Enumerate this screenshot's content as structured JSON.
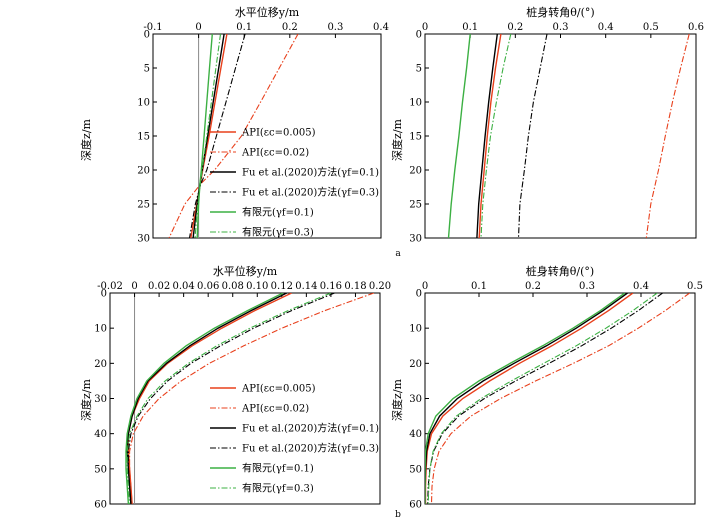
{
  "panel_labels": [
    "a",
    "b"
  ],
  "series_styles": [
    {
      "color": "#e8401c",
      "dash": "",
      "width": 1.4
    },
    {
      "color": "#e8401c",
      "dash": "6 2 1.5 2",
      "width": 1.1
    },
    {
      "color": "#000000",
      "dash": "",
      "width": 1.4
    },
    {
      "color": "#000000",
      "dash": "6 2 1.5 2",
      "width": 1.1
    },
    {
      "color": "#3cb043",
      "dash": "",
      "width": 1.4
    },
    {
      "color": "#3cb043",
      "dash": "6 2 1.5 2",
      "width": 1.1
    }
  ],
  "chart_data": [
    {
      "id": "a-left",
      "type": "line",
      "xlabel": "水平位移y/m",
      "ylabel": "深度z/m",
      "xlim": [
        -0.1,
        0.4
      ],
      "ylim": [
        30,
        0
      ],
      "xticks": [
        "-0.1",
        "0",
        "0.1",
        "0.2",
        "0.3",
        "0.4"
      ],
      "yticks": [
        "0",
        "5",
        "10",
        "15",
        "20",
        "25",
        "30"
      ],
      "legend": [
        "API(εc=0.005)",
        "API(εc=0.02)",
        "Fu et al.(2020)方法(γf=0.1)",
        "Fu et al.(2020)方法(γf=0.3)",
        "有限元(γf=0.1)",
        "有限元(γf=0.3)"
      ],
      "series": [
        {
          "z": [
            0,
            5,
            10,
            15,
            20,
            22,
            25,
            30
          ],
          "y": [
            0.062,
            0.049,
            0.036,
            0.023,
            0.009,
            0.004,
            -0.004,
            -0.017
          ]
        },
        {
          "z": [
            0,
            5,
            10,
            15,
            20,
            22,
            25,
            30
          ],
          "y": [
            0.218,
            0.177,
            0.136,
            0.094,
            0.035,
            0.005,
            -0.03,
            -0.065
          ]
        },
        {
          "z": [
            0,
            5,
            10,
            15,
            20,
            22,
            25,
            30
          ],
          "y": [
            0.056,
            0.044,
            0.032,
            0.02,
            0.008,
            0.003,
            -0.003,
            -0.012
          ]
        },
        {
          "z": [
            0,
            5,
            10,
            15,
            20,
            22,
            25,
            30
          ],
          "y": [
            0.102,
            0.081,
            0.06,
            0.039,
            0.018,
            0.005,
            -0.007,
            -0.02
          ]
        },
        {
          "z": [
            0,
            5,
            10,
            15,
            20,
            22,
            25,
            30
          ],
          "y": [
            0.03,
            0.024,
            0.018,
            0.012,
            0.006,
            0.003,
            0.0,
            -0.003
          ]
        },
        {
          "z": [
            0,
            5,
            10,
            15,
            20,
            22,
            25,
            30
          ],
          "y": [
            0.048,
            0.038,
            0.028,
            0.018,
            0.008,
            0.004,
            -0.002,
            -0.008
          ]
        }
      ]
    },
    {
      "id": "a-right",
      "type": "line",
      "xlabel": "桩身转角θ/(°)",
      "ylabel": "深度z/m",
      "xlim": [
        0,
        0.6
      ],
      "ylim": [
        30,
        0
      ],
      "xticks": [
        "0",
        "0.1",
        "0.2",
        "0.3",
        "0.4",
        "0.5",
        "0.6"
      ],
      "yticks": [
        "0",
        "5",
        "10",
        "15",
        "20",
        "25",
        "30"
      ],
      "series": [
        {
          "z": [
            0,
            5,
            10,
            15,
            20,
            25,
            30
          ],
          "theta": [
            0.168,
            0.156,
            0.146,
            0.138,
            0.131,
            0.124,
            0.12
          ]
        },
        {
          "z": [
            0,
            5,
            10,
            15,
            20,
            25,
            30
          ],
          "theta": [
            0.585,
            0.566,
            0.548,
            0.532,
            0.517,
            0.5,
            0.49
          ]
        },
        {
          "z": [
            0,
            5,
            10,
            15,
            20,
            25,
            30
          ],
          "theta": [
            0.16,
            0.15,
            0.141,
            0.133,
            0.126,
            0.119,
            0.115
          ]
        },
        {
          "z": [
            0,
            5,
            10,
            15,
            20,
            25,
            30
          ],
          "theta": [
            0.27,
            0.255,
            0.24,
            0.229,
            0.22,
            0.21,
            0.207
          ]
        },
        {
          "z": [
            0,
            5,
            10,
            15,
            20,
            25,
            30
          ],
          "theta": [
            0.1,
            0.092,
            0.083,
            0.075,
            0.066,
            0.058,
            0.052
          ]
        },
        {
          "z": [
            0,
            5,
            10,
            15,
            20,
            25,
            30
          ],
          "theta": [
            0.19,
            0.173,
            0.158,
            0.145,
            0.136,
            0.128,
            0.124
          ]
        }
      ]
    },
    {
      "id": "b-left",
      "type": "line",
      "xlabel": "水平位移y/m",
      "ylabel": "深度z/m",
      "xlim": [
        -0.02,
        0.2
      ],
      "ylim": [
        60,
        0
      ],
      "xticks": [
        "-0.02",
        "0",
        "0.02",
        "0.04",
        "0.06",
        "0.08",
        "0.10",
        "0.12",
        "0.14",
        "0.16",
        "0.18",
        "0.20"
      ],
      "yticks": [
        "0",
        "10",
        "20",
        "30",
        "40",
        "50",
        "60"
      ],
      "legend": [
        "API(εc=0.005)",
        "API(εc=0.02)",
        "Fu et al.(2020)方法(γf=0.1)",
        "Fu et al.(2020)方法(γf=0.3)",
        "有限元(γf=0.1)",
        "有限元(γf=0.3)"
      ],
      "series": [
        {
          "z": [
            0,
            5,
            10,
            15,
            20,
            25,
            30,
            35,
            40,
            45,
            50,
            55,
            60
          ],
          "y": [
            0.128,
            0.098,
            0.071,
            0.047,
            0.027,
            0.012,
            0.004,
            -0.002,
            -0.005,
            -0.005,
            -0.004,
            -0.003,
            -0.002
          ]
        },
        {
          "z": [
            0,
            5,
            10,
            15,
            20,
            25,
            30,
            35,
            40,
            45,
            50,
            55,
            60
          ],
          "y": [
            0.195,
            0.155,
            0.12,
            0.089,
            0.061,
            0.038,
            0.02,
            0.007,
            -0.001,
            -0.004,
            -0.004,
            -0.003,
            -0.002
          ]
        },
        {
          "z": [
            0,
            5,
            10,
            15,
            20,
            25,
            30,
            35,
            40,
            45,
            50,
            55,
            60
          ],
          "y": [
            0.124,
            0.095,
            0.068,
            0.045,
            0.026,
            0.011,
            0.003,
            -0.002,
            -0.005,
            -0.006,
            -0.005,
            -0.004,
            -0.003
          ]
        },
        {
          "z": [
            0,
            5,
            10,
            15,
            20,
            25,
            30,
            35,
            40,
            45,
            50,
            55,
            60
          ],
          "y": [
            0.163,
            0.128,
            0.097,
            0.07,
            0.046,
            0.027,
            0.013,
            0.003,
            -0.003,
            -0.005,
            -0.005,
            -0.004,
            -0.003
          ]
        },
        {
          "z": [
            0,
            5,
            10,
            15,
            20,
            25,
            30,
            35,
            40,
            45,
            50,
            55,
            60
          ],
          "y": [
            0.121,
            0.092,
            0.065,
            0.042,
            0.024,
            0.01,
            0.002,
            -0.003,
            -0.006,
            -0.007,
            -0.007,
            -0.006,
            -0.005
          ]
        },
        {
          "z": [
            0,
            5,
            10,
            15,
            20,
            25,
            30,
            35,
            40,
            45,
            50,
            55,
            60
          ],
          "y": [
            0.16,
            0.125,
            0.094,
            0.067,
            0.044,
            0.025,
            0.011,
            0.002,
            -0.004,
            -0.006,
            -0.006,
            -0.005,
            -0.004
          ]
        }
      ]
    },
    {
      "id": "b-right",
      "type": "line",
      "xlabel": "桩身转角θ/(°)",
      "ylabel": "深度z/m",
      "xlim": [
        0,
        0.5
      ],
      "ylim": [
        60,
        0
      ],
      "xticks": [
        "0",
        "0.1",
        "0.2",
        "0.3",
        "0.4",
        "0.5"
      ],
      "yticks": [
        "0",
        "10",
        "20",
        "30",
        "40",
        "50",
        "60"
      ],
      "series": [
        {
          "z": [
            0,
            5,
            10,
            15,
            20,
            25,
            30,
            35,
            40,
            45,
            50,
            55,
            60
          ],
          "theta": [
            0.385,
            0.34,
            0.29,
            0.235,
            0.175,
            0.12,
            0.07,
            0.033,
            0.012,
            0.004,
            0.002,
            0.001,
            0.001
          ]
        },
        {
          "z": [
            0,
            5,
            10,
            15,
            20,
            25,
            30,
            35,
            40,
            45,
            50,
            55,
            60
          ],
          "theta": [
            0.49,
            0.445,
            0.395,
            0.34,
            0.275,
            0.205,
            0.14,
            0.085,
            0.048,
            0.026,
            0.017,
            0.013,
            0.012
          ]
        },
        {
          "z": [
            0,
            5,
            10,
            15,
            20,
            25,
            30,
            35,
            40,
            45,
            50,
            55,
            60
          ],
          "theta": [
            0.375,
            0.33,
            0.28,
            0.225,
            0.165,
            0.108,
            0.06,
            0.027,
            0.009,
            0.003,
            0.001,
            0.0,
            0.0
          ]
        },
        {
          "z": [
            0,
            5,
            10,
            15,
            20,
            25,
            30,
            35,
            40,
            45,
            50,
            55,
            60
          ],
          "theta": [
            0.44,
            0.395,
            0.345,
            0.29,
            0.23,
            0.168,
            0.11,
            0.062,
            0.032,
            0.016,
            0.009,
            0.006,
            0.005
          ]
        },
        {
          "z": [
            0,
            5,
            10,
            15,
            20,
            25,
            30,
            35,
            40,
            45,
            50,
            55,
            60
          ],
          "theta": [
            0.37,
            0.325,
            0.274,
            0.218,
            0.158,
            0.1,
            0.052,
            0.02,
            0.006,
            0.001,
            0.0,
            0.0,
            0.0
          ]
        },
        {
          "z": [
            0,
            5,
            10,
            15,
            20,
            25,
            30,
            35,
            40,
            45,
            50,
            55,
            60
          ],
          "theta": [
            0.43,
            0.385,
            0.335,
            0.28,
            0.22,
            0.16,
            0.104,
            0.058,
            0.03,
            0.015,
            0.009,
            0.007,
            0.006
          ]
        }
      ]
    }
  ]
}
